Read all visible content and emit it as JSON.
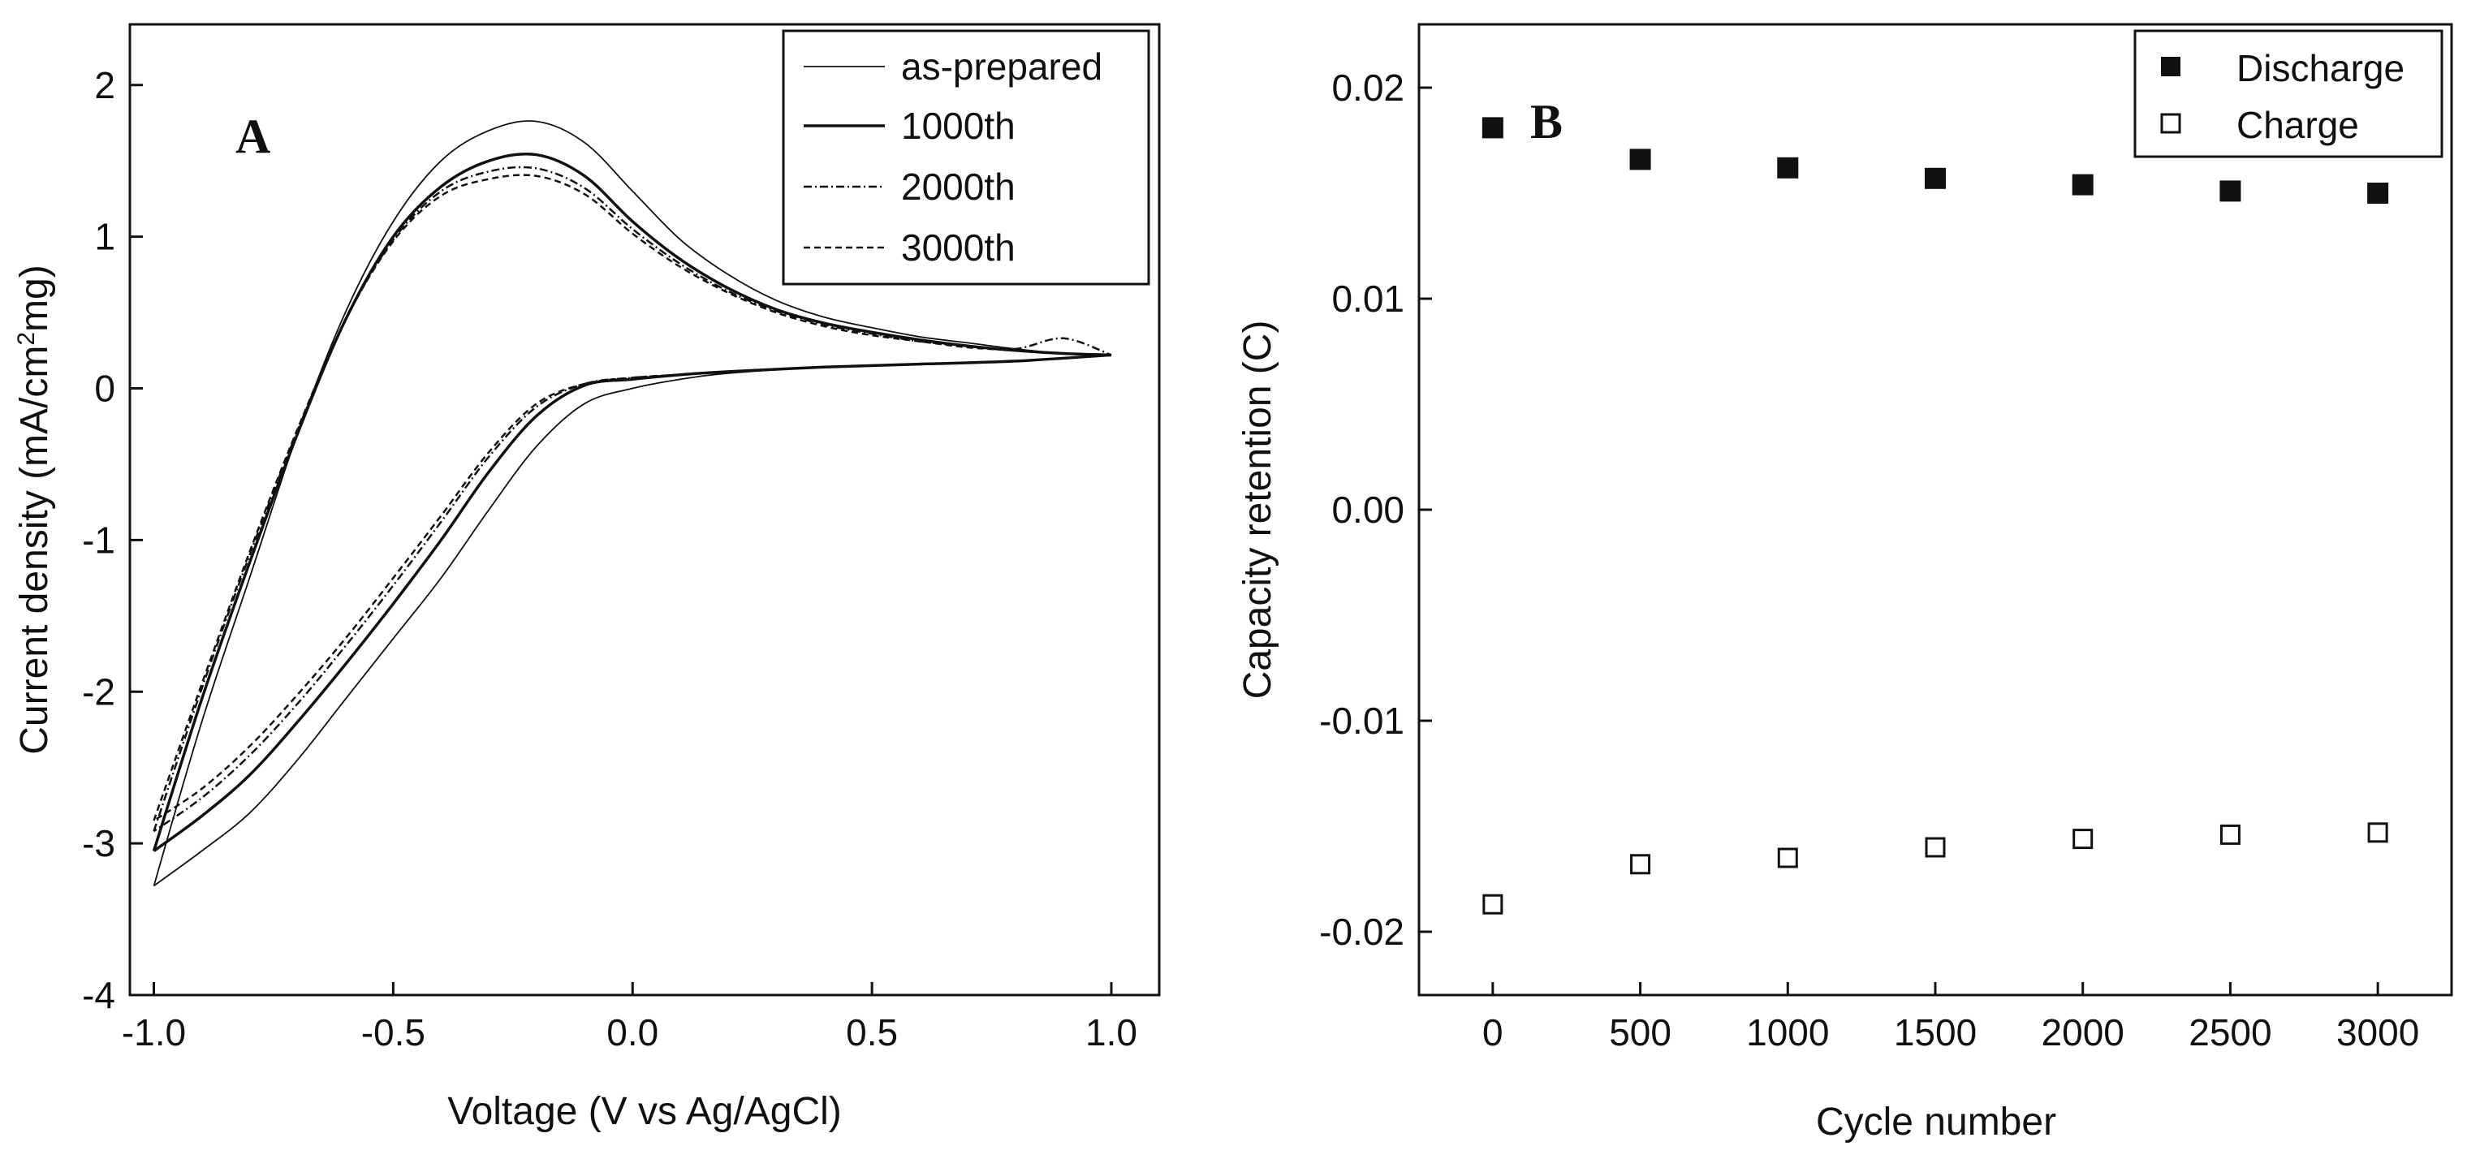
{
  "chart_data": [
    {
      "type": "line",
      "panel_label": "A",
      "xlabel": "Voltage (V vs Ag/AgCl)",
      "ylabel_prefix": "Current density (mA/cm",
      "ylabel_sup": "2",
      "ylabel_suffix": "mg)",
      "xlim": [
        -1.05,
        1.1
      ],
      "ylim": [
        -4,
        2.4
      ],
      "xticks": [
        -1.0,
        -0.5,
        0.0,
        0.5,
        1.0
      ],
      "xtick_labels": [
        "-1.0",
        "-0.5",
        "0.0",
        "0.5",
        "1.0"
      ],
      "yticks": [
        -4,
        -3,
        -2,
        -1,
        0,
        1,
        2
      ],
      "ytick_labels": [
        "-4",
        "-3",
        "-2",
        "-1",
        "0",
        "1",
        "2"
      ],
      "legend_position": "top-right",
      "series": [
        {
          "name": "as-prepared",
          "dash": "solid-thin",
          "anodic": [
            [
              -1.0,
              -3.28
            ],
            [
              -0.9,
              -2.2
            ],
            [
              -0.8,
              -1.25
            ],
            [
              -0.7,
              -0.3
            ],
            [
              -0.6,
              0.5
            ],
            [
              -0.5,
              1.1
            ],
            [
              -0.4,
              1.5
            ],
            [
              -0.3,
              1.7
            ],
            [
              -0.2,
              1.76
            ],
            [
              -0.1,
              1.62
            ],
            [
              0.0,
              1.3
            ],
            [
              0.1,
              0.98
            ],
            [
              0.2,
              0.75
            ],
            [
              0.3,
              0.58
            ],
            [
              0.4,
              0.47
            ],
            [
              0.5,
              0.4
            ],
            [
              0.6,
              0.34
            ],
            [
              0.7,
              0.3
            ],
            [
              0.8,
              0.26
            ],
            [
              0.9,
              0.23
            ],
            [
              1.0,
              0.22
            ]
          ],
          "cathodic": [
            [
              1.0,
              0.22
            ],
            [
              0.8,
              0.18
            ],
            [
              0.6,
              0.16
            ],
            [
              0.4,
              0.14
            ],
            [
              0.2,
              0.1
            ],
            [
              0.1,
              0.06
            ],
            [
              0.0,
              0.0
            ],
            [
              -0.1,
              -0.1
            ],
            [
              -0.2,
              -0.38
            ],
            [
              -0.3,
              -0.8
            ],
            [
              -0.4,
              -1.25
            ],
            [
              -0.5,
              -1.65
            ],
            [
              -0.6,
              -2.05
            ],
            [
              -0.7,
              -2.45
            ],
            [
              -0.8,
              -2.8
            ],
            [
              -0.9,
              -3.05
            ],
            [
              -1.0,
              -3.28
            ]
          ]
        },
        {
          "name": "1000th",
          "dash": "solid",
          "anodic": [
            [
              -1.0,
              -3.05
            ],
            [
              -0.9,
              -2.05
            ],
            [
              -0.8,
              -1.15
            ],
            [
              -0.7,
              -0.3
            ],
            [
              -0.6,
              0.45
            ],
            [
              -0.5,
              1.0
            ],
            [
              -0.4,
              1.33
            ],
            [
              -0.3,
              1.5
            ],
            [
              -0.2,
              1.54
            ],
            [
              -0.1,
              1.4
            ],
            [
              0.0,
              1.1
            ],
            [
              0.1,
              0.85
            ],
            [
              0.2,
              0.66
            ],
            [
              0.3,
              0.52
            ],
            [
              0.4,
              0.43
            ],
            [
              0.5,
              0.37
            ],
            [
              0.6,
              0.32
            ],
            [
              0.7,
              0.28
            ],
            [
              0.8,
              0.25
            ],
            [
              0.9,
              0.23
            ],
            [
              1.0,
              0.22
            ]
          ],
          "cathodic": [
            [
              1.0,
              0.22
            ],
            [
              0.8,
              0.18
            ],
            [
              0.6,
              0.16
            ],
            [
              0.4,
              0.14
            ],
            [
              0.2,
              0.11
            ],
            [
              0.1,
              0.09
            ],
            [
              0.0,
              0.06
            ],
            [
              -0.1,
              0.02
            ],
            [
              -0.2,
              -0.18
            ],
            [
              -0.3,
              -0.55
            ],
            [
              -0.4,
              -1.0
            ],
            [
              -0.5,
              -1.42
            ],
            [
              -0.6,
              -1.82
            ],
            [
              -0.7,
              -2.2
            ],
            [
              -0.8,
              -2.55
            ],
            [
              -0.9,
              -2.82
            ],
            [
              -1.0,
              -3.05
            ]
          ]
        },
        {
          "name": "2000th",
          "dash": "dash-dot",
          "anodic": [
            [
              -1.0,
              -2.92
            ],
            [
              -0.9,
              -1.98
            ],
            [
              -0.8,
              -1.1
            ],
            [
              -0.7,
              -0.28
            ],
            [
              -0.6,
              0.45
            ],
            [
              -0.5,
              0.98
            ],
            [
              -0.4,
              1.3
            ],
            [
              -0.3,
              1.43
            ],
            [
              -0.2,
              1.45
            ],
            [
              -0.1,
              1.32
            ],
            [
              0.0,
              1.05
            ],
            [
              0.1,
              0.82
            ],
            [
              0.2,
              0.64
            ],
            [
              0.3,
              0.51
            ],
            [
              0.4,
              0.42
            ],
            [
              0.5,
              0.36
            ],
            [
              0.6,
              0.31
            ],
            [
              0.7,
              0.28
            ],
            [
              0.8,
              0.26
            ],
            [
              0.9,
              0.33
            ],
            [
              1.0,
              0.22
            ]
          ],
          "cathodic": [
            [
              1.0,
              0.22
            ],
            [
              0.8,
              0.18
            ],
            [
              0.6,
              0.16
            ],
            [
              0.4,
              0.14
            ],
            [
              0.2,
              0.11
            ],
            [
              0.1,
              0.09
            ],
            [
              0.0,
              0.07
            ],
            [
              -0.1,
              0.03
            ],
            [
              -0.2,
              -0.12
            ],
            [
              -0.3,
              -0.45
            ],
            [
              -0.4,
              -0.88
            ],
            [
              -0.5,
              -1.3
            ],
            [
              -0.6,
              -1.7
            ],
            [
              -0.7,
              -2.08
            ],
            [
              -0.8,
              -2.42
            ],
            [
              -0.9,
              -2.7
            ],
            [
              -1.0,
              -2.92
            ]
          ]
        },
        {
          "name": "3000th",
          "dash": "dashed",
          "anodic": [
            [
              -1.0,
              -2.85
            ],
            [
              -0.9,
              -1.95
            ],
            [
              -0.8,
              -1.08
            ],
            [
              -0.7,
              -0.27
            ],
            [
              -0.6,
              0.45
            ],
            [
              -0.5,
              0.97
            ],
            [
              -0.4,
              1.27
            ],
            [
              -0.3,
              1.38
            ],
            [
              -0.2,
              1.4
            ],
            [
              -0.1,
              1.28
            ],
            [
              0.0,
              1.02
            ],
            [
              0.1,
              0.8
            ],
            [
              0.2,
              0.63
            ],
            [
              0.3,
              0.5
            ],
            [
              0.4,
              0.41
            ],
            [
              0.5,
              0.35
            ],
            [
              0.6,
              0.31
            ],
            [
              0.7,
              0.27
            ],
            [
              0.8,
              0.25
            ],
            [
              0.9,
              0.23
            ],
            [
              1.0,
              0.22
            ]
          ],
          "cathodic": [
            [
              1.0,
              0.22
            ],
            [
              0.8,
              0.18
            ],
            [
              0.6,
              0.16
            ],
            [
              0.4,
              0.14
            ],
            [
              0.2,
              0.11
            ],
            [
              0.1,
              0.09
            ],
            [
              0.0,
              0.07
            ],
            [
              -0.1,
              0.03
            ],
            [
              -0.2,
              -0.1
            ],
            [
              -0.3,
              -0.42
            ],
            [
              -0.4,
              -0.84
            ],
            [
              -0.5,
              -1.25
            ],
            [
              -0.6,
              -1.65
            ],
            [
              -0.7,
              -2.02
            ],
            [
              -0.8,
              -2.36
            ],
            [
              -0.9,
              -2.64
            ],
            [
              -1.0,
              -2.85
            ]
          ]
        }
      ]
    },
    {
      "type": "scatter",
      "panel_label": "B",
      "xlabel": "Cycle number",
      "ylabel": "Capacity retention (C)",
      "xlim": [
        -250,
        3250
      ],
      "ylim": [
        -0.023,
        0.023
      ],
      "xticks": [
        0,
        500,
        1000,
        1500,
        2000,
        2500,
        3000
      ],
      "xtick_labels": [
        "0",
        "500",
        "1000",
        "1500",
        "2000",
        "2500",
        "3000"
      ],
      "yticks": [
        -0.02,
        -0.01,
        0.0,
        0.01,
        0.02
      ],
      "ytick_labels": [
        "-0.02",
        "-0.01",
        "0.00",
        "0.01",
        "0.02"
      ],
      "legend_position": "top-right",
      "x": [
        0,
        500,
        1000,
        1500,
        2000,
        2500,
        3000
      ],
      "series": [
        {
          "name": "Discharge",
          "marker": "filled-square",
          "values": [
            0.0181,
            0.0166,
            0.0162,
            0.0157,
            0.0154,
            0.0151,
            0.015
          ]
        },
        {
          "name": "Charge",
          "marker": "open-square",
          "values": [
            -0.0187,
            -0.0168,
            -0.0165,
            -0.016,
            -0.0156,
            -0.0154,
            -0.0153
          ]
        }
      ]
    }
  ]
}
